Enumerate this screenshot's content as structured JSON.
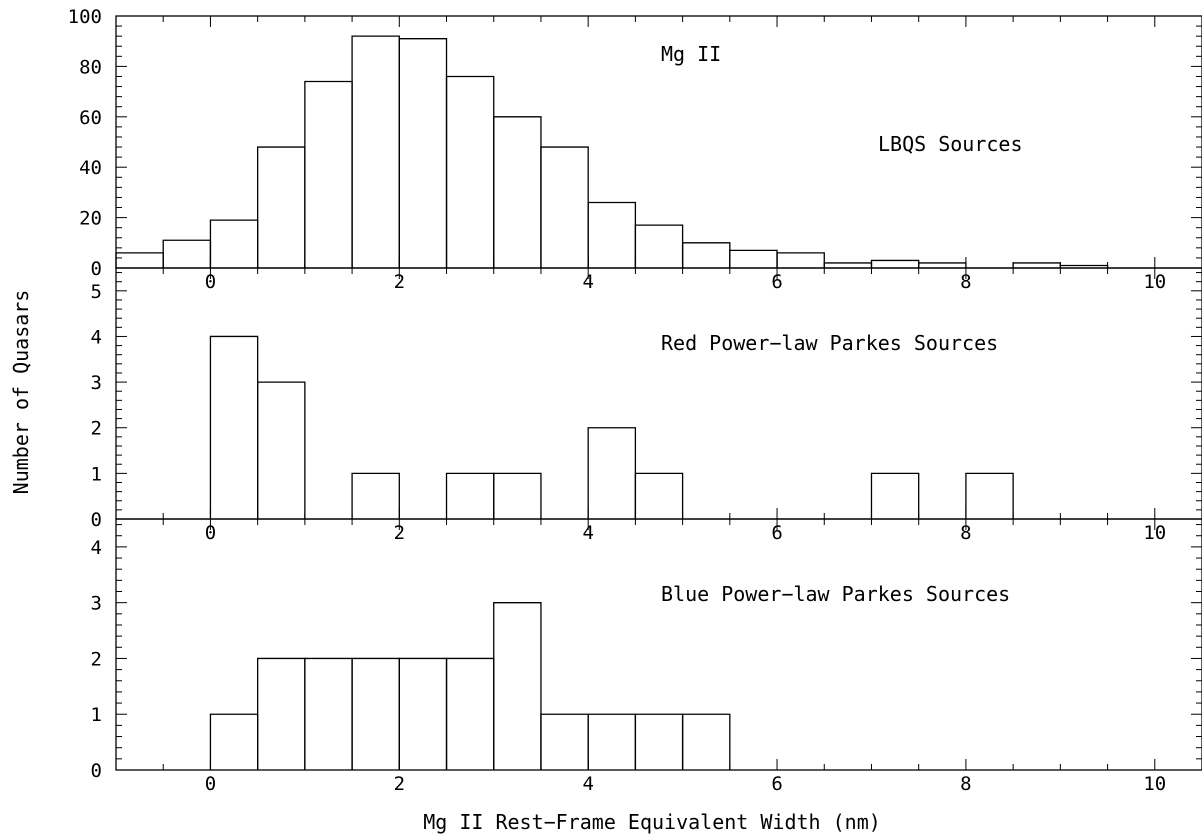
{
  "chart_data": {
    "type": "histogram",
    "xlabel": "Mg II Rest−Frame Equivalent Width (nm)",
    "ylabel": "Number of Quasars",
    "bin_width": 0.5,
    "xlim": [
      -1,
      10.5
    ],
    "x_ticks": [
      0,
      2,
      4,
      6,
      8,
      10
    ],
    "annotations": [
      "Mg II"
    ],
    "panels": [
      {
        "label": "LBQS Sources",
        "ylim": [
          0,
          100
        ],
        "y_ticks": [
          0,
          20,
          40,
          60,
          80,
          100
        ],
        "bin_starts": [
          -1,
          -0.5,
          0,
          0.5,
          1,
          1.5,
          2,
          2.5,
          3,
          3.5,
          4,
          4.5,
          5,
          5.5,
          6,
          6.5,
          7,
          7.5,
          8,
          8.5,
          9,
          9.5
        ],
        "values": [
          6,
          11,
          19,
          48,
          74,
          92,
          91,
          76,
          60,
          48,
          26,
          17,
          10,
          7,
          6,
          2,
          3,
          2,
          0,
          2,
          1,
          0
        ]
      },
      {
        "label": "Red Power−law Parkes Sources",
        "ylim": [
          0,
          5.5
        ],
        "y_ticks": [
          0,
          1,
          2,
          3,
          4,
          5
        ],
        "bin_starts": [
          0,
          0.5,
          1,
          1.5,
          2,
          2.5,
          3,
          3.5,
          4,
          4.5,
          5,
          5.5,
          6,
          6.5,
          7,
          7.5,
          8
        ],
        "values": [
          4,
          3,
          0,
          1,
          0,
          1,
          1,
          0,
          2,
          1,
          0,
          0,
          0,
          0,
          1,
          0,
          1
        ]
      },
      {
        "label": "Blue Power−law Parkes Sources",
        "ylim": [
          0,
          4.5
        ],
        "y_ticks": [
          0,
          1,
          2,
          3,
          4
        ],
        "bin_starts": [
          0,
          0.5,
          1,
          1.5,
          2,
          2.5,
          3,
          3.5,
          4,
          4.5,
          5
        ],
        "values": [
          1,
          2,
          2,
          2,
          2,
          2,
          3,
          1,
          1,
          1,
          1
        ]
      }
    ]
  }
}
